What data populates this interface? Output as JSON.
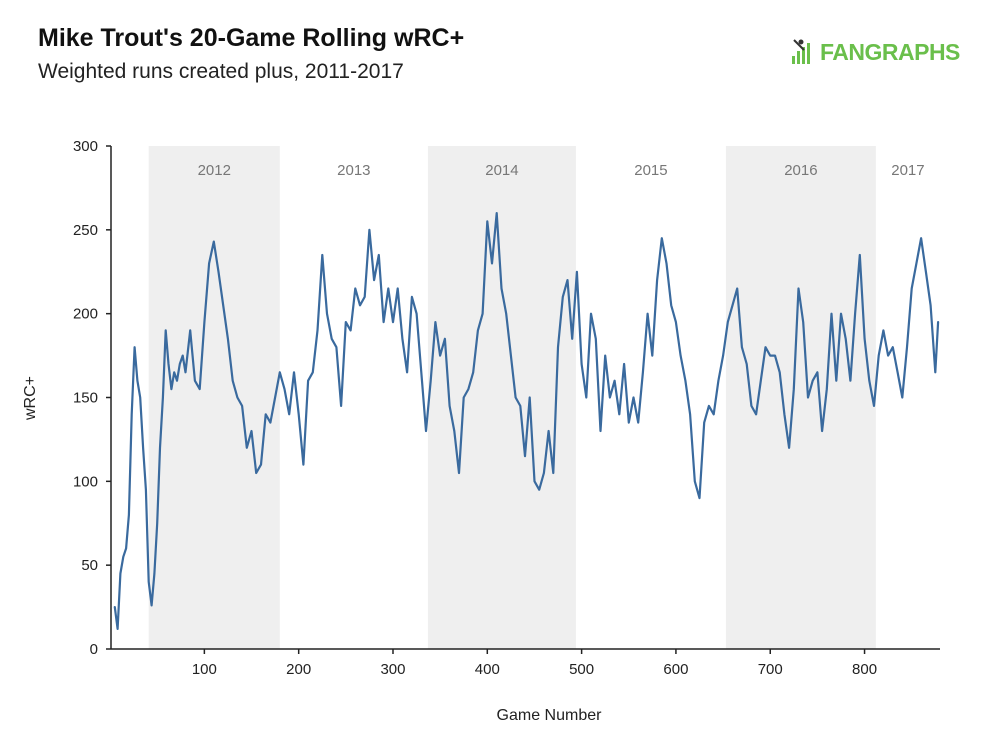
{
  "header": {
    "title": "Mike Trout's 20-Game Rolling wRC+",
    "subtitle": "Weighted runs created plus, 2011-2017"
  },
  "logo": {
    "text": "FANGRAPHS",
    "icon": "fangraphs-batter-icon",
    "color": "#6abf4b"
  },
  "chart_data": {
    "type": "line",
    "title": "Mike Trout's 20-Game Rolling wRC+",
    "subtitle": "Weighted runs created plus, 2011-2017",
    "xlabel": "Game Number",
    "ylabel": "wRC+",
    "xlim": [
      1,
      880
    ],
    "ylim": [
      0,
      300
    ],
    "xticks": [
      100,
      200,
      300,
      400,
      500,
      600,
      700,
      800
    ],
    "yticks": [
      0,
      50,
      100,
      150,
      200,
      250,
      300
    ],
    "grid": false,
    "line_color": "#3a6a9e",
    "band_color": "#efefef",
    "seasons": [
      {
        "label": "2012",
        "start": 41,
        "end": 180,
        "shaded": true
      },
      {
        "label": "2013",
        "start": 180,
        "end": 337,
        "shaded": false
      },
      {
        "label": "2014",
        "start": 337,
        "end": 494,
        "shaded": true
      },
      {
        "label": "2015",
        "start": 494,
        "end": 653,
        "shaded": false
      },
      {
        "label": "2016",
        "start": 653,
        "end": 812,
        "shaded": true
      },
      {
        "label": "2017",
        "start": 812,
        "end": 880,
        "shaded": false
      }
    ],
    "series": [
      {
        "name": "20-Game Rolling wRC+",
        "x": [
          5,
          8,
          11,
          14,
          17,
          20,
          23,
          26,
          29,
          32,
          35,
          38,
          41,
          44,
          47,
          50,
          53,
          56,
          59,
          62,
          65,
          68,
          71,
          74,
          77,
          80,
          85,
          90,
          95,
          100,
          105,
          110,
          115,
          120,
          125,
          130,
          135,
          140,
          145,
          150,
          155,
          160,
          165,
          170,
          175,
          180,
          185,
          190,
          195,
          200,
          205,
          210,
          215,
          220,
          225,
          230,
          235,
          240,
          245,
          250,
          255,
          260,
          265,
          270,
          275,
          280,
          285,
          290,
          295,
          300,
          305,
          310,
          315,
          320,
          325,
          330,
          335,
          340,
          345,
          350,
          355,
          360,
          365,
          370,
          375,
          380,
          385,
          390,
          395,
          400,
          405,
          410,
          415,
          420,
          425,
          430,
          435,
          440,
          445,
          450,
          455,
          460,
          465,
          470,
          475,
          480,
          485,
          490,
          495,
          500,
          505,
          510,
          515,
          520,
          525,
          530,
          535,
          540,
          545,
          550,
          555,
          560,
          565,
          570,
          575,
          580,
          585,
          590,
          595,
          600,
          605,
          610,
          615,
          620,
          625,
          630,
          635,
          640,
          645,
          650,
          655,
          660,
          665,
          670,
          675,
          680,
          685,
          690,
          695,
          700,
          705,
          710,
          715,
          720,
          725,
          730,
          735,
          740,
          745,
          750,
          755,
          760,
          765,
          770,
          775,
          780,
          785,
          790,
          795,
          800,
          805,
          810,
          815,
          820,
          825,
          830,
          835,
          840,
          845,
          850,
          855,
          860,
          865,
          870,
          875,
          878
        ],
        "values": [
          25,
          12,
          45,
          55,
          60,
          80,
          140,
          180,
          160,
          150,
          120,
          95,
          40,
          26,
          45,
          75,
          120,
          150,
          190,
          170,
          155,
          165,
          160,
          170,
          175,
          165,
          190,
          160,
          155,
          195,
          230,
          243,
          225,
          205,
          185,
          160,
          150,
          145,
          120,
          130,
          105,
          110,
          140,
          135,
          150,
          165,
          155,
          140,
          165,
          140,
          110,
          160,
          165,
          190,
          235,
          200,
          185,
          180,
          145,
          195,
          190,
          215,
          205,
          210,
          250,
          220,
          235,
          195,
          215,
          195,
          215,
          185,
          165,
          210,
          200,
          165,
          130,
          160,
          195,
          175,
          185,
          145,
          130,
          105,
          150,
          155,
          165,
          190,
          200,
          255,
          230,
          260,
          215,
          200,
          175,
          150,
          145,
          115,
          150,
          100,
          95,
          105,
          130,
          105,
          180,
          210,
          220,
          185,
          225,
          170,
          150,
          200,
          185,
          130,
          175,
          150,
          160,
          140,
          170,
          135,
          150,
          135,
          165,
          200,
          175,
          220,
          245,
          230,
          205,
          195,
          175,
          160,
          140,
          100,
          90,
          135,
          145,
          140,
          160,
          175,
          195,
          205,
          215,
          180,
          170,
          145,
          140,
          160,
          180,
          175,
          175,
          165,
          140,
          120,
          155,
          215,
          195,
          150,
          160,
          165,
          130,
          155,
          200,
          160,
          200,
          185,
          160,
          200,
          235,
          185,
          160,
          145,
          175,
          190,
          175,
          180,
          165,
          150,
          180,
          215,
          230,
          245,
          225,
          205,
          165,
          195
        ]
      }
    ]
  }
}
